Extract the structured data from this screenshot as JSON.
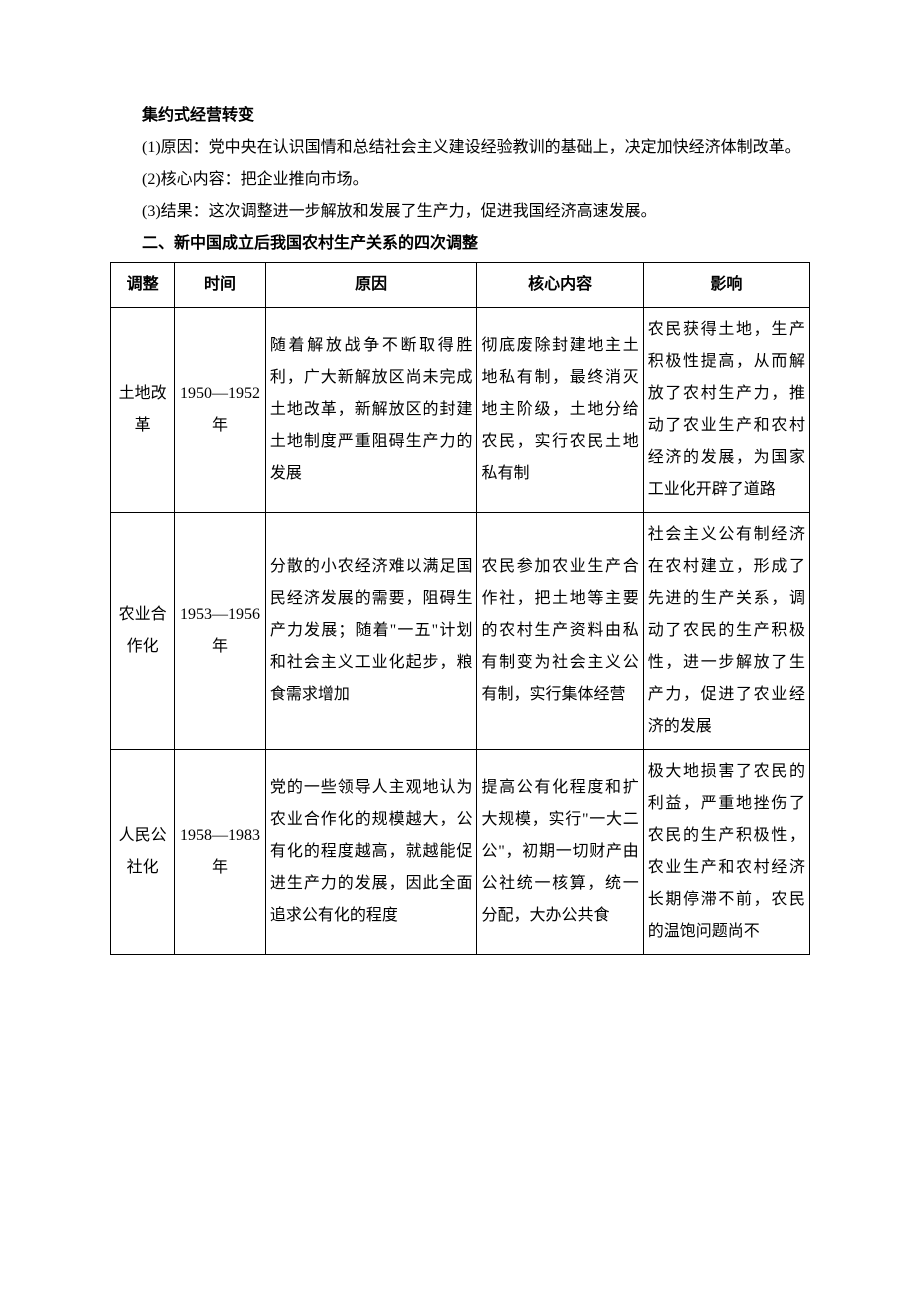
{
  "intro": {
    "line0": "集约式经营转变",
    "p1": "(1)原因：党中央在认识国情和总结社会主义建设经验教训的基础上，决定加快经济体制改革。",
    "p2": "(2)核心内容：把企业推向市场。",
    "p3": "(3)结果：这次调整进一步解放和发展了生产力，促进我国经济高速发展。",
    "heading2": "二、新中国成立后我国农村生产关系的四次调整"
  },
  "table": {
    "headers": [
      "调整",
      "时间",
      "原因",
      "核心内容",
      "影响"
    ],
    "rows": [
      {
        "adj": "土地改革",
        "time": "1950—1952 年",
        "reason": "随着解放战争不断取得胜利，广大新解放区尚未完成土地改革，新解放区的封建土地制度严重阻碍生产力的发展",
        "core": "彻底废除封建地主土地私有制，最终消灭地主阶级，土地分给农民，实行农民土地私有制",
        "impact": "农民获得土地，生产积极性提高，从而解放了农村生产力，推动了农业生产和农村经济的发展，为国家工业化开辟了道路"
      },
      {
        "adj": "农业合作化",
        "time": "1953—1956 年",
        "reason": "分散的小农经济难以满足国民经济发展的需要，阻碍生产力发展；随着\"一五\"计划和社会主义工业化起步，粮食需求增加",
        "core": "农民参加农业生产合作社，把土地等主要的农村生产资料由私有制变为社会主义公有制，实行集体经营",
        "impact": "社会主义公有制经济在农村建立，形成了先进的生产关系，调动了农民的生产积极性，进一步解放了生产力，促进了农业经济的发展"
      },
      {
        "adj": "人民公社化",
        "time": "1958—1983 年",
        "reason": "党的一些领导人主观地认为农业合作化的规模越大，公有化的程度越高，就越能促进生产力的发展，因此全面追求公有化的程度",
        "core": "提高公有化程度和扩大规模，实行\"一大二公\"，初期一切财产由公社统一核算，统一分配，大办公共食",
        "impact": "极大地损害了农民的利益，严重地挫伤了农民的生产积极性，农业生产和农村经济长期停滞不前，农民的温饱问题尚不"
      }
    ]
  }
}
